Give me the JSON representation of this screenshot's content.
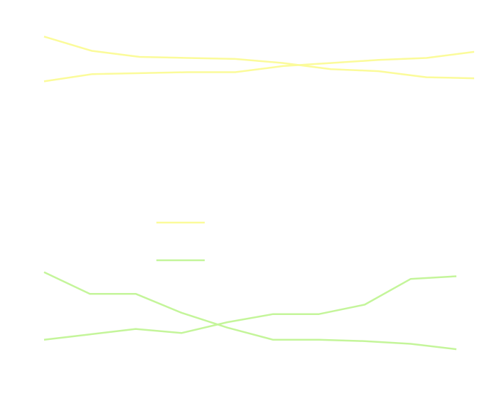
{
  "chart_data": [
    {
      "type": "line",
      "panel": "top",
      "x": [
        0,
        1,
        2,
        3,
        4,
        5,
        6,
        7,
        8,
        9
      ],
      "xlim": [
        0,
        9
      ],
      "ylim": [
        0,
        100
      ],
      "grid": false,
      "series": [
        {
          "color": "#fbfb9a",
          "values": [
            92,
            78,
            72,
            71,
            70,
            66,
            60,
            58,
            52,
            51
          ]
        },
        {
          "color": "#fbfb9a",
          "values": [
            48,
            55,
            56,
            57,
            57,
            63,
            66,
            69,
            71,
            77
          ]
        }
      ]
    },
    {
      "type": "line",
      "panel": "bottom",
      "x": [
        0,
        1,
        2,
        3,
        4,
        5,
        6,
        7,
        8,
        9
      ],
      "xlim": [
        0,
        9
      ],
      "ylim": [
        0,
        100
      ],
      "grid": false,
      "series": [
        {
          "color": "#c4f59a",
          "values": [
            88,
            72,
            72,
            58,
            47,
            38,
            38,
            37,
            35,
            31
          ]
        },
        {
          "color": "#c4f59a",
          "values": [
            38,
            42,
            46,
            43,
            51,
            57,
            57,
            64,
            83,
            85
          ]
        }
      ]
    }
  ],
  "legend": {
    "placement": "center",
    "entries": [
      {
        "color": "#fbfb9a"
      },
      {
        "color": "#c4f59a"
      }
    ]
  }
}
